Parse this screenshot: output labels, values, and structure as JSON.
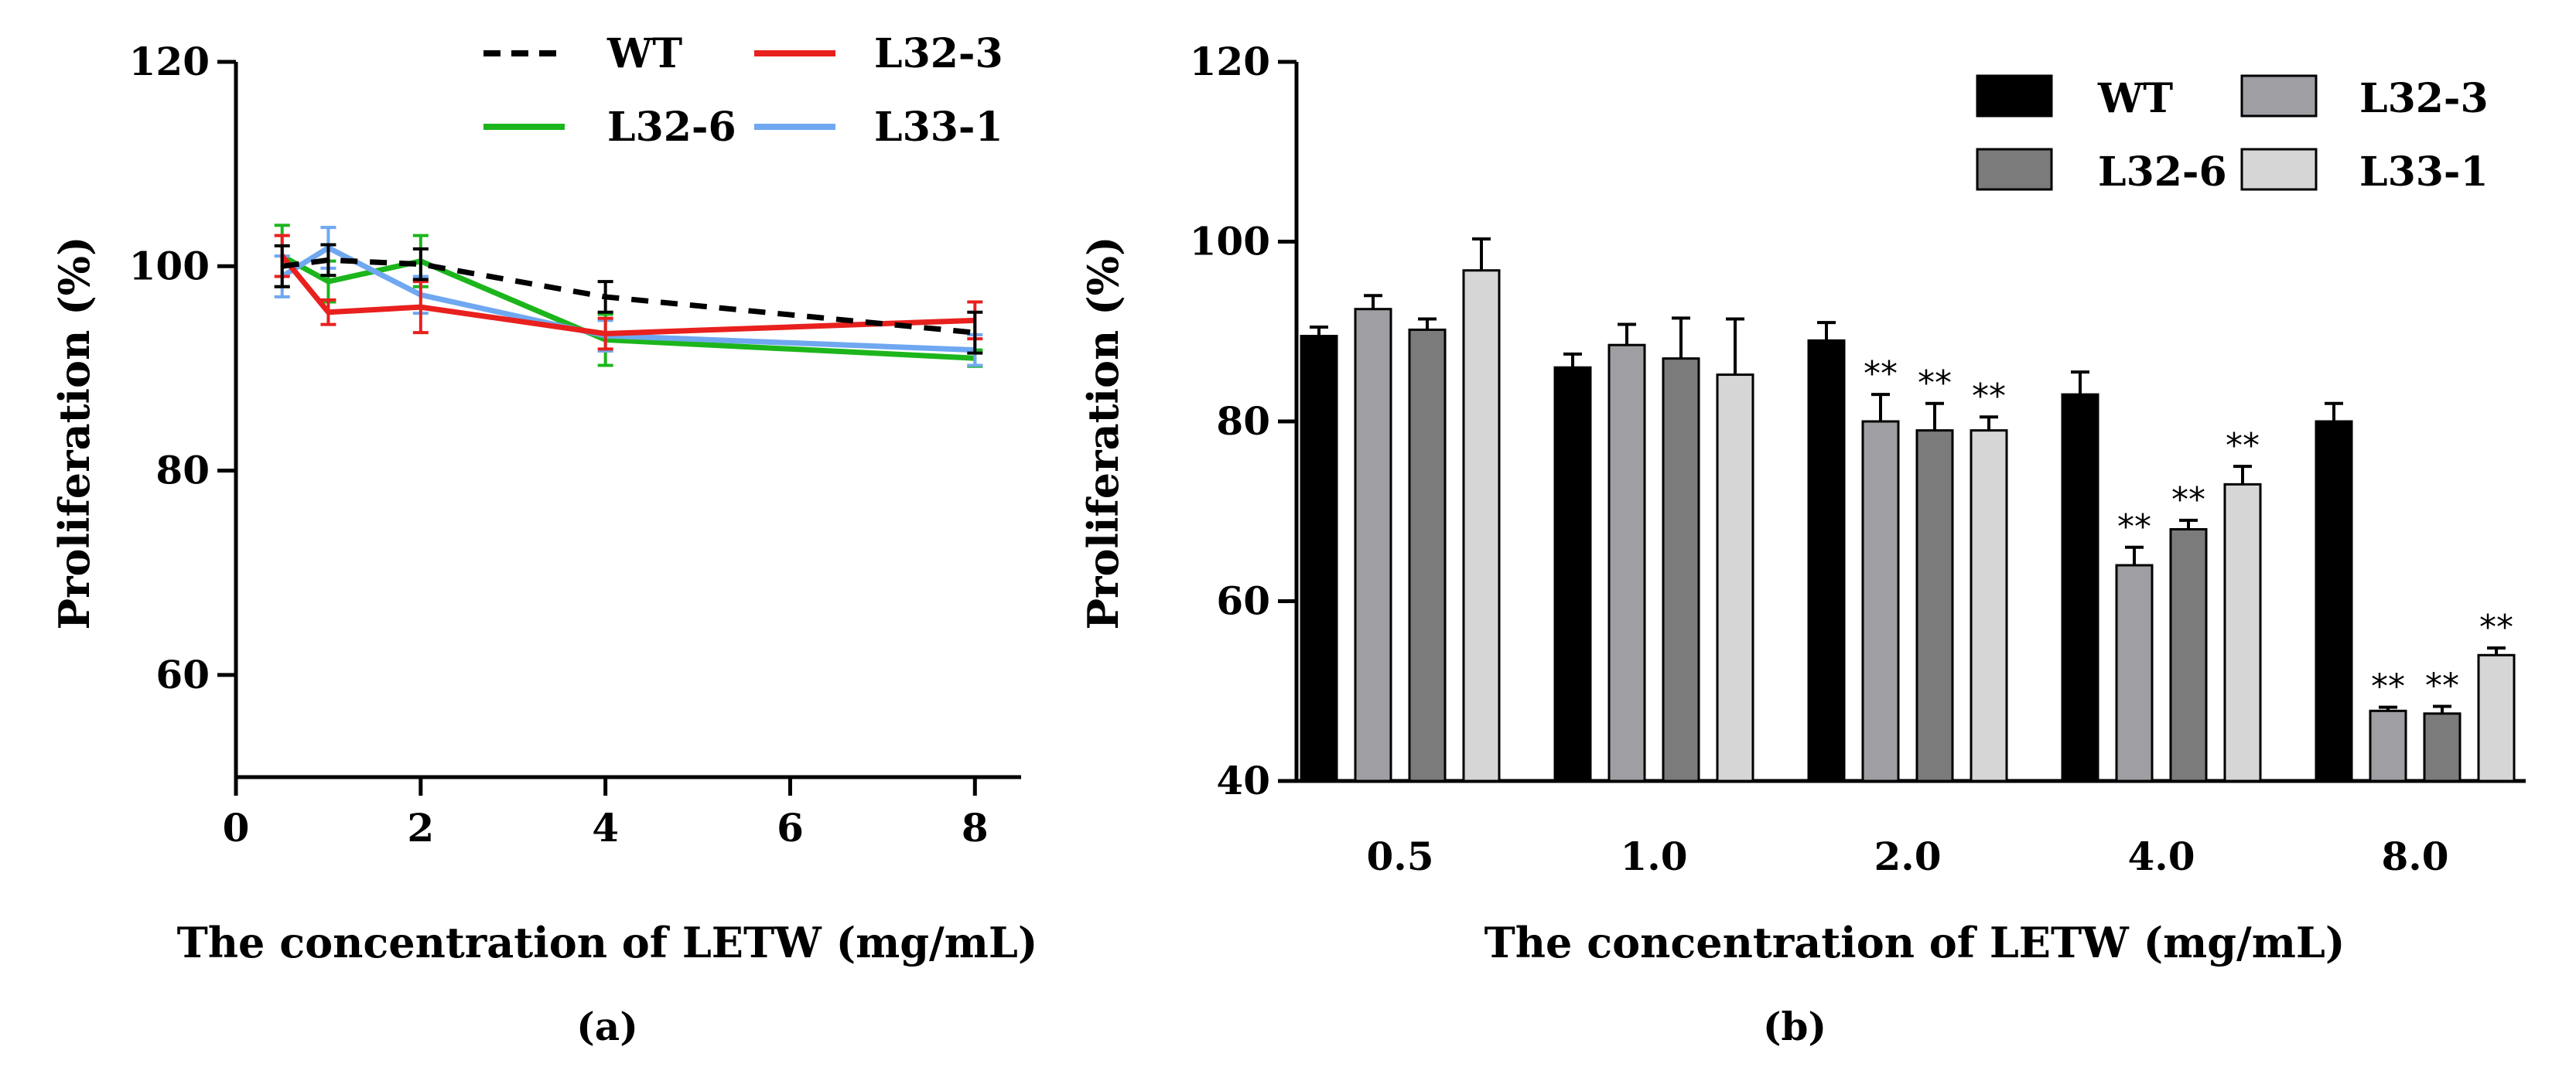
{
  "chart_data": [
    {
      "type": "line",
      "panel_label": "(a)",
      "xlabel": "The concentration of LETW (mg/mL)",
      "ylabel": "Proliferation (%)",
      "xlim": [
        0,
        8.5
      ],
      "ylim": [
        50,
        120
      ],
      "xticks": [
        0,
        2,
        4,
        6,
        8
      ],
      "xtick_labels": [
        "0",
        "2",
        "4",
        "6",
        "8"
      ],
      "yticks": [
        60,
        80,
        100,
        120
      ],
      "ytick_labels": [
        "60",
        "80",
        "100",
        "120"
      ],
      "legend_position": "top",
      "series": [
        {
          "name": "WT",
          "color": "#000000",
          "dash": "dashed",
          "x": [
            0.5,
            1,
            2,
            4,
            8
          ],
          "y": [
            100,
            100.6,
            100.2,
            97,
            93.5
          ],
          "err": [
            2,
            1.5,
            1.5,
            1.5,
            2
          ]
        },
        {
          "name": "L32-3",
          "color": "#e8201e",
          "dash": "solid",
          "x": [
            0.5,
            1,
            2,
            4,
            8
          ],
          "y": [
            101,
            95.5,
            96,
            93.4,
            94.7
          ],
          "err": [
            2,
            1.2,
            2.5,
            1.5,
            1.8
          ]
        },
        {
          "name": "L32-6",
          "color": "#1cb51c",
          "dash": "solid",
          "x": [
            0.5,
            1,
            2,
            4,
            8
          ],
          "y": [
            101,
            98.5,
            100.5,
            92.8,
            91
          ],
          "err": [
            3,
            2,
            2.5,
            2.5,
            0.8
          ]
        },
        {
          "name": "L33-1",
          "color": "#6fa8f0",
          "dash": "solid",
          "x": [
            0.5,
            1,
            2,
            4,
            8
          ],
          "y": [
            99,
            101.8,
            97.2,
            93.2,
            91.8
          ],
          "err": [
            2,
            2,
            1.8,
            1.5,
            1.5
          ]
        }
      ]
    },
    {
      "type": "bar",
      "panel_label": "(b)",
      "xlabel": "The concentration of LETW (mg/mL)",
      "ylabel": "Proliferation (%)",
      "ylim": [
        40,
        120
      ],
      "yticks": [
        40,
        60,
        80,
        100,
        120
      ],
      "ytick_labels": [
        "40",
        "60",
        "80",
        "100",
        "120"
      ],
      "categories": [
        "0.5",
        "1.0",
        "2.0",
        "4.0",
        "8.0"
      ],
      "legend_position": "top-right",
      "series": [
        {
          "name": "WT",
          "color": "#000000",
          "values": [
            89.5,
            86,
            89,
            83,
            80
          ],
          "err": [
            1,
            1.5,
            2,
            2.5,
            2
          ],
          "sig": [
            "",
            "",
            "",
            "",
            ""
          ]
        },
        {
          "name": "L32-3",
          "color": "#9e9ea3",
          "values": [
            92.5,
            88.5,
            80,
            64,
            47.8
          ],
          "err": [
            1.5,
            2.3,
            3,
            2,
            0.4
          ],
          "sig": [
            "",
            "",
            "**",
            "**",
            "**"
          ]
        },
        {
          "name": "L32-6",
          "color": "#7b7b7b",
          "values": [
            90.2,
            87,
            79,
            68,
            47.5
          ],
          "err": [
            1.2,
            4.5,
            3,
            1,
            0.8
          ],
          "sig": [
            "",
            "",
            "**",
            "**",
            "**"
          ]
        },
        {
          "name": "L33-1",
          "color": "#d6d6d6",
          "values": [
            96.8,
            85.2,
            79,
            73,
            54
          ],
          "err": [
            3.5,
            6.2,
            1.5,
            2,
            0.8
          ],
          "sig": [
            "",
            "",
            "**",
            "**",
            "**"
          ]
        }
      ]
    }
  ]
}
